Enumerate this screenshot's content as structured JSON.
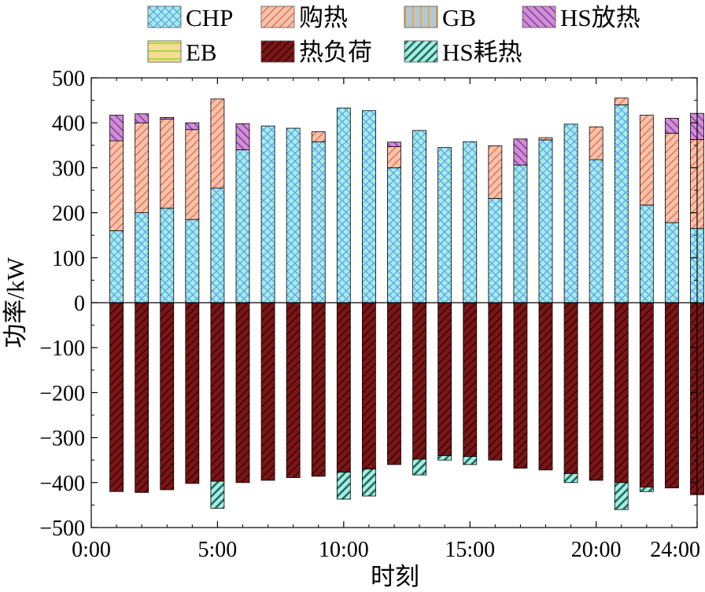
{
  "chart_data": {
    "type": "bar",
    "stacked": true,
    "xlabel": "时刻",
    "ylabel": "功率/kW",
    "ylim": [
      -500,
      500
    ],
    "xlim": [
      0,
      24
    ],
    "yticks": [
      500,
      400,
      300,
      200,
      100,
      0,
      -100,
      -200,
      -300,
      -400,
      -500
    ],
    "xticks": [
      {
        "value": 0,
        "label": "0:00"
      },
      {
        "value": 5,
        "label": "5:00"
      },
      {
        "value": 10,
        "label": "10:00"
      },
      {
        "value": 15,
        "label": "15:00"
      },
      {
        "value": 20,
        "label": "20:00"
      },
      {
        "value": 24,
        "label": "24:00"
      }
    ],
    "grid": false,
    "legend_position": "top",
    "x": [
      1,
      2,
      3,
      4,
      5,
      6,
      7,
      8,
      9,
      10,
      11,
      12,
      13,
      14,
      15,
      16,
      17,
      18,
      19,
      20,
      21,
      22,
      23,
      24
    ],
    "series": [
      {
        "name": "CHP",
        "key": "chp",
        "color": "#a5ede4",
        "hatch_color": "#5a9ef0",
        "values": [
          160,
          200,
          210,
          185,
          255,
          340,
          393,
          388,
          358,
          433,
          427,
          300,
          383,
          345,
          358,
          232,
          306,
          362,
          397,
          318,
          440,
          217,
          178,
          165
        ]
      },
      {
        "name": "购热",
        "key": "buy",
        "color": "#f7c2ac",
        "hatch_color": "#e5623f",
        "values": [
          200,
          200,
          198,
          200,
          198,
          0,
          0,
          0,
          22,
          0,
          0,
          47,
          0,
          0,
          0,
          117,
          0,
          5,
          0,
          73,
          15,
          200,
          199,
          198
        ]
      },
      {
        "name": "GB",
        "key": "gb",
        "color": "#b4c7d0",
        "hatch_color": "#e8a32a",
        "values": [
          0,
          0,
          0,
          0,
          0,
          0,
          0,
          0,
          0,
          0,
          0,
          0,
          0,
          0,
          0,
          0,
          0,
          0,
          0,
          0,
          0,
          0,
          0,
          0
        ]
      },
      {
        "name": "HS放热",
        "key": "hsout",
        "color": "#d48fc4",
        "hatch_color": "#7b3fd9",
        "values": [
          57,
          20,
          4,
          15,
          0,
          58,
          0,
          0,
          0,
          0,
          0,
          10,
          0,
          0,
          0,
          0,
          58,
          0,
          0,
          0,
          0,
          0,
          33,
          58
        ]
      },
      {
        "name": "EB",
        "key": "eb",
        "color": "#f8dc93",
        "hatch_color": "#8cd43a",
        "values": [
          0,
          0,
          0,
          0,
          0,
          0,
          0,
          0,
          0,
          0,
          0,
          0,
          0,
          0,
          0,
          0,
          0,
          0,
          0,
          0,
          0,
          0,
          0,
          0
        ]
      },
      {
        "name": "热负荷",
        "key": "load",
        "color": "#7a1616",
        "hatch_color": "#2a0000",
        "values": [
          -420,
          -422,
          -416,
          -402,
          -397,
          -400,
          -395,
          -389,
          -386,
          -377,
          -370,
          -360,
          -348,
          -340,
          -342,
          -350,
          -368,
          -372,
          -380,
          -395,
          -400,
          -410,
          -412,
          -427
        ]
      },
      {
        "name": "HS耗热",
        "key": "hsin",
        "color": "#a8ede0",
        "hatch_color": "#1f6e62",
        "values": [
          0,
          0,
          0,
          0,
          -60,
          0,
          0,
          0,
          0,
          -60,
          -60,
          0,
          -35,
          -10,
          -18,
          0,
          0,
          0,
          -20,
          0,
          -60,
          -10,
          0,
          0
        ]
      }
    ]
  }
}
